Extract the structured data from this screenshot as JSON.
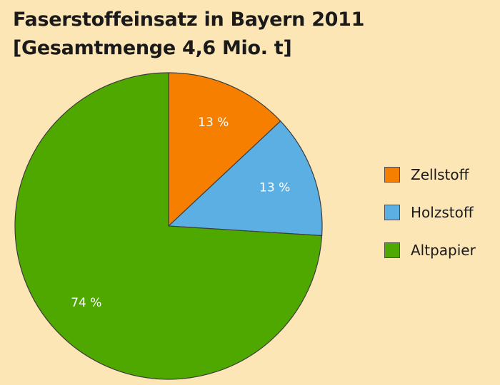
{
  "chart_data": {
    "type": "pie",
    "title": "Faserstoffeinsatz in Bayern 2011",
    "subtitle": "[Gesamtmenge 4,6 Mio. t]",
    "slices": [
      {
        "name": "Zellstoff",
        "value": 13,
        "label": "13 %",
        "color": "#f77f00"
      },
      {
        "name": "Holzstoff",
        "value": 13,
        "label": "13 %",
        "color": "#5cafe3"
      },
      {
        "name": "Altpapier",
        "value": 74,
        "label": "74 %",
        "color": "#4fa800"
      }
    ],
    "legend_position": "right"
  }
}
